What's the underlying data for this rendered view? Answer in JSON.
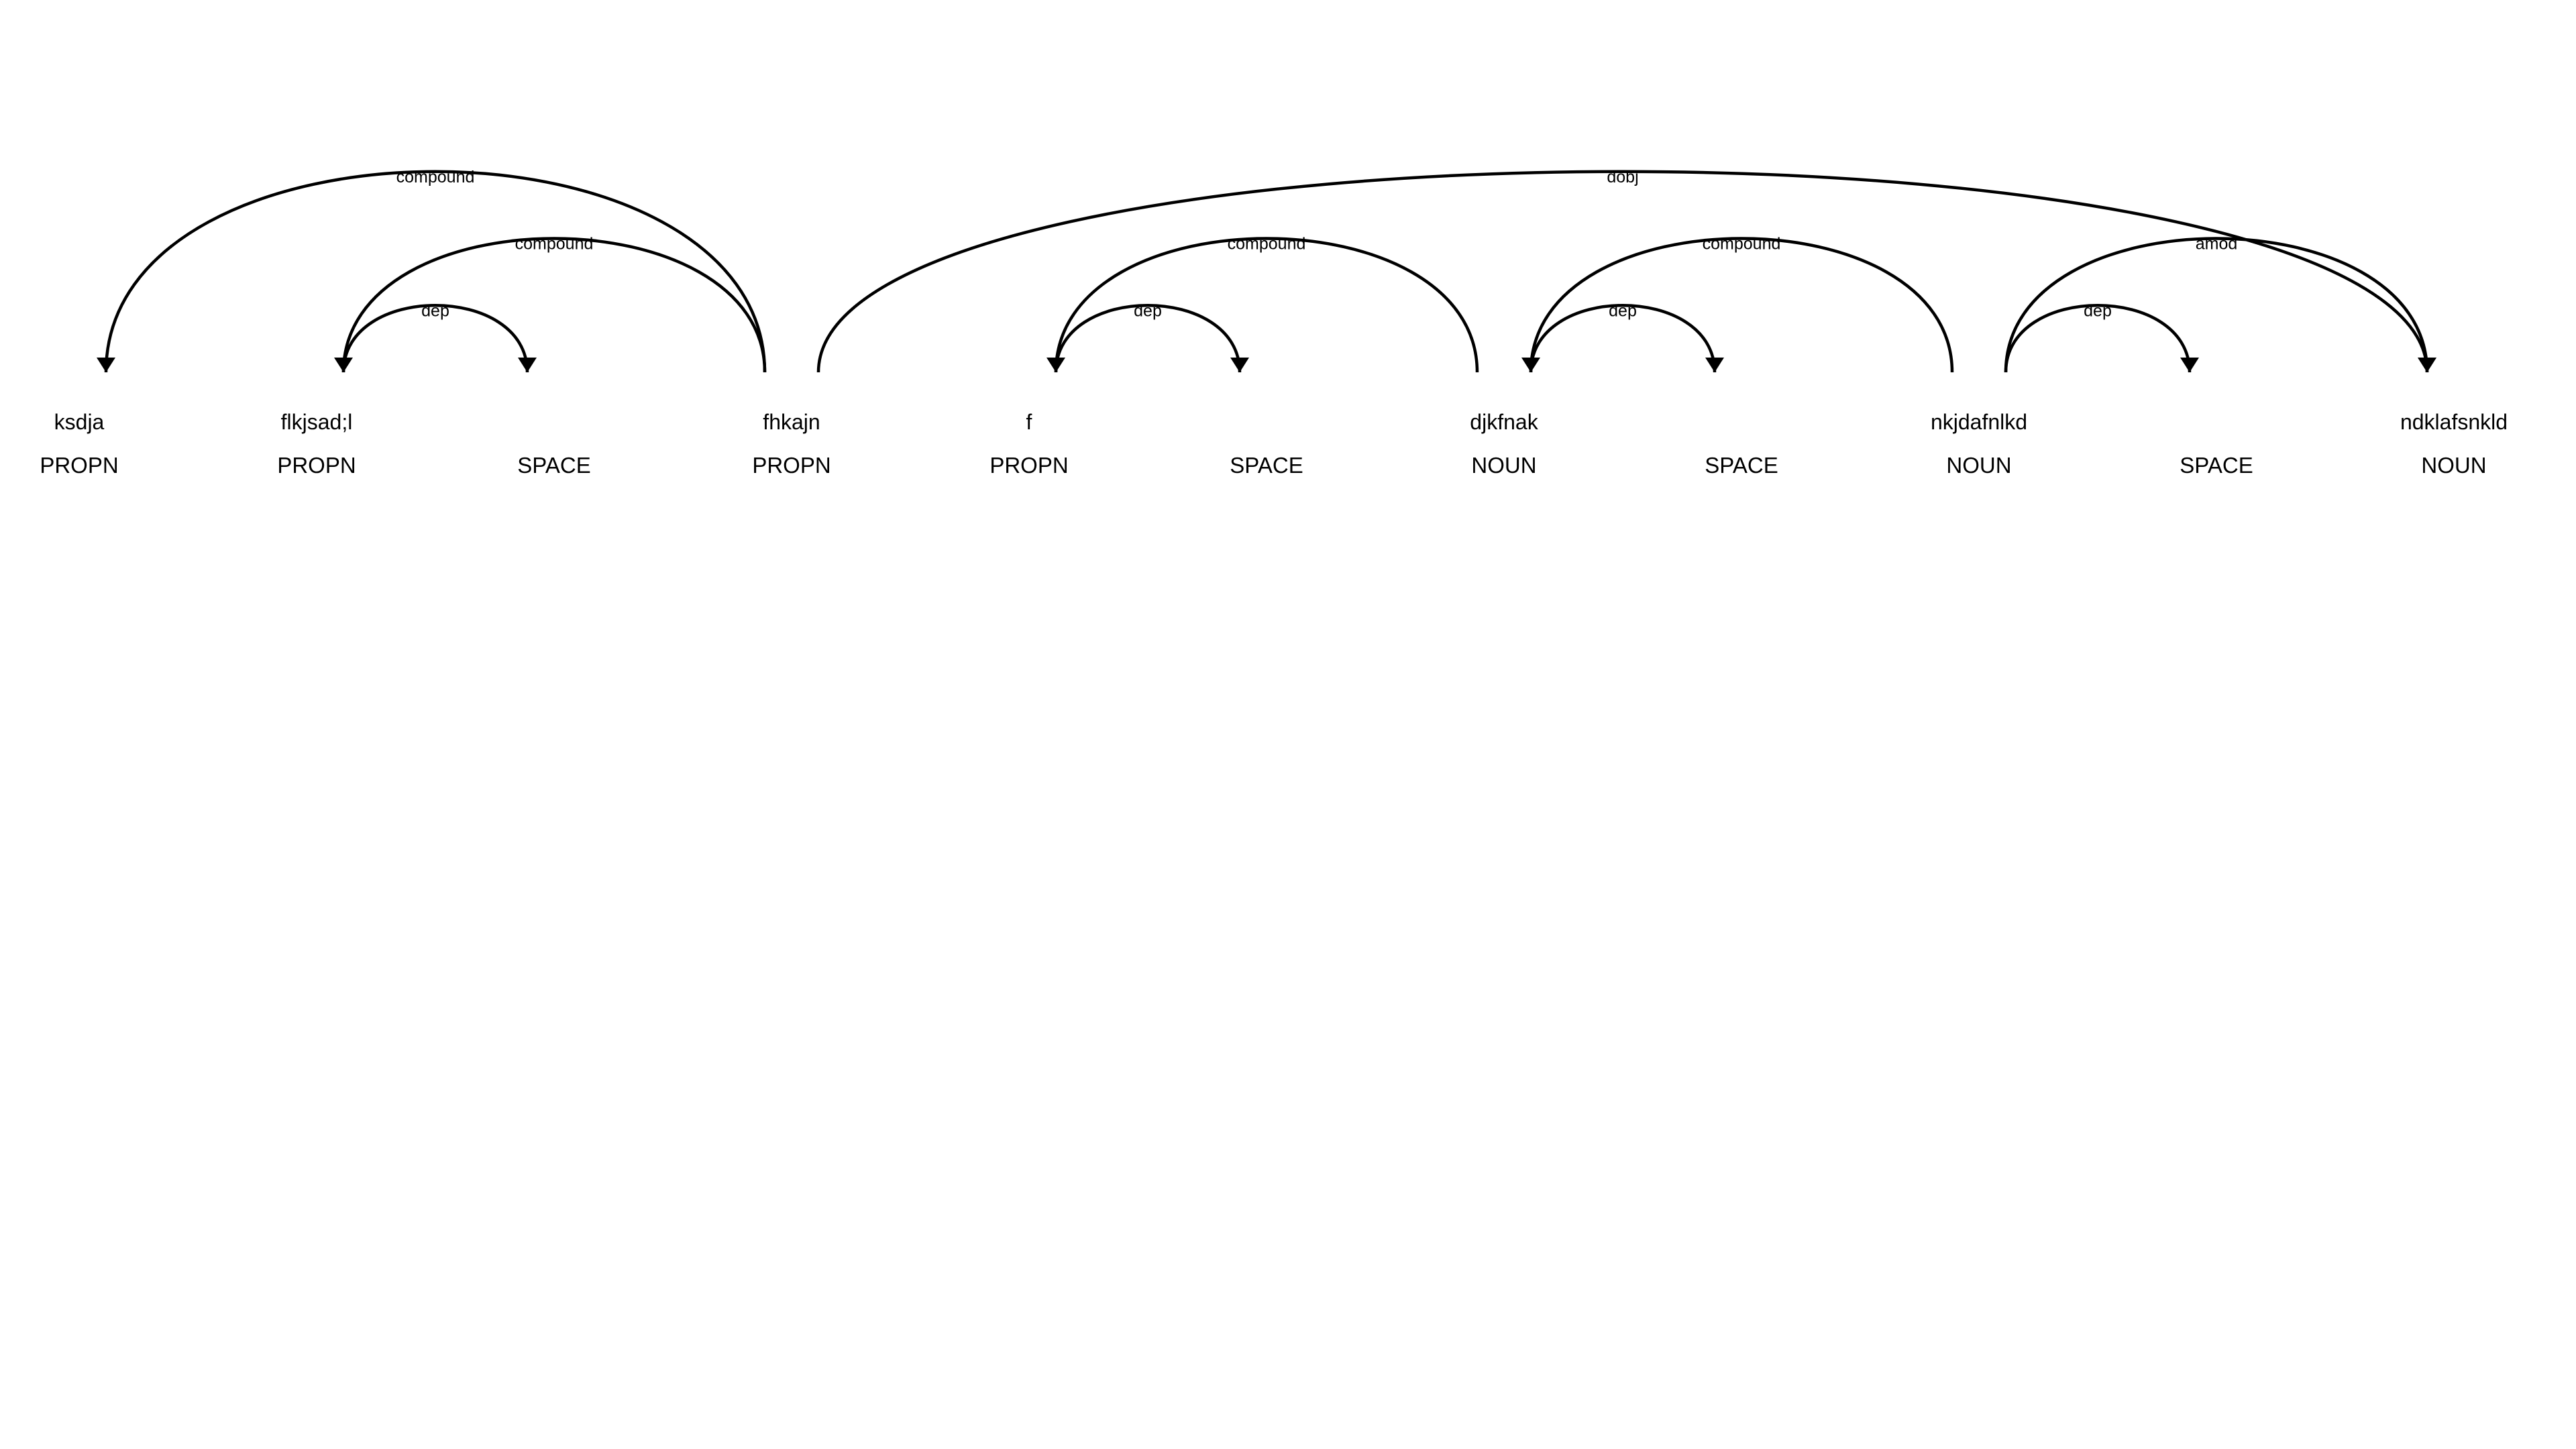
{
  "tokens": [
    {
      "text": "ksdja",
      "tag": "PROPN"
    },
    {
      "text": "flkjsad;l",
      "tag": "PROPN"
    },
    {
      "text": "",
      "tag": "SPACE"
    },
    {
      "text": "fhkajn",
      "tag": "PROPN"
    },
    {
      "text": "f",
      "tag": "PROPN"
    },
    {
      "text": "",
      "tag": "SPACE"
    },
    {
      "text": "djkfnak",
      "tag": "NOUN"
    },
    {
      "text": "",
      "tag": "SPACE"
    },
    {
      "text": "nkjdafnlkd",
      "tag": "NOUN"
    },
    {
      "text": "",
      "tag": "SPACE"
    },
    {
      "text": "ndklafsnkld",
      "tag": "NOUN"
    }
  ],
  "arcs": [
    {
      "label": "compound",
      "from": 0,
      "to": 3,
      "dir": "left"
    },
    {
      "label": "compound",
      "from": 1,
      "to": 3,
      "dir": "left"
    },
    {
      "label": "dep",
      "from": 1,
      "to": 2,
      "dir": "right"
    },
    {
      "label": "dobj",
      "from": 3,
      "to": 10,
      "dir": "right"
    },
    {
      "label": "compound",
      "from": 4,
      "to": 6,
      "dir": "left"
    },
    {
      "label": "dep",
      "from": 4,
      "to": 5,
      "dir": "right"
    },
    {
      "label": "compound",
      "from": 6,
      "to": 8,
      "dir": "left"
    },
    {
      "label": "dep",
      "from": 6,
      "to": 7,
      "dir": "right"
    },
    {
      "label": "amod",
      "from": 8,
      "to": 10,
      "dir": "right"
    },
    {
      "label": "dep",
      "from": 8,
      "to": 9,
      "dir": "right"
    }
  ]
}
